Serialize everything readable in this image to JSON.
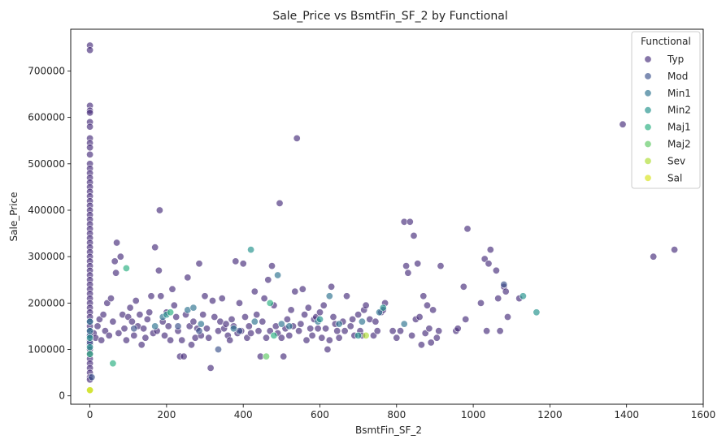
{
  "chart_data": {
    "type": "scatter",
    "title": "Sale_Price vs BsmtFin_SF_2 by Functional",
    "xlabel": "BsmtFin_SF_2",
    "ylabel": "Sale_Price",
    "xlim": [
      -50,
      1600
    ],
    "ylim": [
      -18000,
      790000
    ],
    "xticks": [
      0,
      200,
      400,
      600,
      800,
      1000,
      1200,
      1400,
      1600
    ],
    "yticks": [
      0,
      100000,
      200000,
      300000,
      400000,
      500000,
      600000,
      700000
    ],
    "grid": false,
    "legend": {
      "title": "Functional",
      "placement": "top-right"
    },
    "series": [
      {
        "name": "Typ",
        "color": "#472d7b",
        "points": [
          [
            0,
            755000
          ],
          [
            0,
            745000
          ],
          [
            0,
            625000
          ],
          [
            0,
            615000
          ],
          [
            0,
            610000
          ],
          [
            0,
            590000
          ],
          [
            0,
            580000
          ],
          [
            0,
            555000
          ],
          [
            0,
            545000
          ],
          [
            0,
            535000
          ],
          [
            0,
            520000
          ],
          [
            0,
            500000
          ],
          [
            0,
            490000
          ],
          [
            0,
            480000
          ],
          [
            0,
            470000
          ],
          [
            0,
            460000
          ],
          [
            0,
            450000
          ],
          [
            0,
            440000
          ],
          [
            0,
            430000
          ],
          [
            0,
            420000
          ],
          [
            0,
            410000
          ],
          [
            0,
            400000
          ],
          [
            0,
            390000
          ],
          [
            0,
            380000
          ],
          [
            0,
            370000
          ],
          [
            0,
            360000
          ],
          [
            0,
            350000
          ],
          [
            0,
            340000
          ],
          [
            0,
            330000
          ],
          [
            0,
            320000
          ],
          [
            0,
            310000
          ],
          [
            0,
            300000
          ],
          [
            0,
            290000
          ],
          [
            0,
            280000
          ],
          [
            0,
            270000
          ],
          [
            0,
            260000
          ],
          [
            0,
            250000
          ],
          [
            0,
            240000
          ],
          [
            0,
            230000
          ],
          [
            0,
            220000
          ],
          [
            0,
            210000
          ],
          [
            0,
            200000
          ],
          [
            0,
            190000
          ],
          [
            0,
            180000
          ],
          [
            0,
            170000
          ],
          [
            0,
            160000
          ],
          [
            0,
            150000
          ],
          [
            0,
            140000
          ],
          [
            0,
            130000
          ],
          [
            0,
            120000
          ],
          [
            0,
            110000
          ],
          [
            0,
            100000
          ],
          [
            0,
            90000
          ],
          [
            0,
            80000
          ],
          [
            0,
            70000
          ],
          [
            0,
            60000
          ],
          [
            0,
            50000
          ],
          [
            0,
            40000
          ],
          [
            0,
            35000
          ],
          [
            10,
            135000
          ],
          [
            15,
            125000
          ],
          [
            20,
            150000
          ],
          [
            25,
            165000
          ],
          [
            30,
            120000
          ],
          [
            35,
            175000
          ],
          [
            40,
            140000
          ],
          [
            45,
            200000
          ],
          [
            50,
            130000
          ],
          [
            55,
            210000
          ],
          [
            60,
            160000
          ],
          [
            65,
            290000
          ],
          [
            68,
            265000
          ],
          [
            70,
            330000
          ],
          [
            75,
            135000
          ],
          [
            80,
            300000
          ],
          [
            85,
            175000
          ],
          [
            90,
            145000
          ],
          [
            95,
            120000
          ],
          [
            100,
            170000
          ],
          [
            105,
            190000
          ],
          [
            110,
            160000
          ],
          [
            115,
            130000
          ],
          [
            120,
            205000
          ],
          [
            125,
            150000
          ],
          [
            130,
            175000
          ],
          [
            135,
            110000
          ],
          [
            140,
            145000
          ],
          [
            145,
            125000
          ],
          [
            150,
            165000
          ],
          [
            155,
            180000
          ],
          [
            160,
            215000
          ],
          [
            165,
            135000
          ],
          [
            170,
            320000
          ],
          [
            175,
            140000
          ],
          [
            180,
            270000
          ],
          [
            182,
            400000
          ],
          [
            185,
            215000
          ],
          [
            190,
            160000
          ],
          [
            195,
            130000
          ],
          [
            200,
            180000
          ],
          [
            205,
            150000
          ],
          [
            210,
            120000
          ],
          [
            215,
            230000
          ],
          [
            220,
            195000
          ],
          [
            225,
            170000
          ],
          [
            230,
            140000
          ],
          [
            235,
            85000
          ],
          [
            240,
            120000
          ],
          [
            245,
            85000
          ],
          [
            250,
            175000
          ],
          [
            255,
            255000
          ],
          [
            260,
            150000
          ],
          [
            265,
            110000
          ],
          [
            270,
            160000
          ],
          [
            275,
            125000
          ],
          [
            280,
            145000
          ],
          [
            285,
            285000
          ],
          [
            290,
            130000
          ],
          [
            295,
            175000
          ],
          [
            300,
            215000
          ],
          [
            305,
            145000
          ],
          [
            310,
            125000
          ],
          [
            315,
            60000
          ],
          [
            320,
            205000
          ],
          [
            325,
            170000
          ],
          [
            335,
            140000
          ],
          [
            340,
            160000
          ],
          [
            345,
            210000
          ],
          [
            350,
            145000
          ],
          [
            355,
            155000
          ],
          [
            360,
            130000
          ],
          [
            365,
            120000
          ],
          [
            370,
            165000
          ],
          [
            375,
            150000
          ],
          [
            380,
            290000
          ],
          [
            385,
            135000
          ],
          [
            390,
            200000
          ],
          [
            395,
            140000
          ],
          [
            400,
            285000
          ],
          [
            405,
            170000
          ],
          [
            410,
            125000
          ],
          [
            415,
            150000
          ],
          [
            420,
            135000
          ],
          [
            430,
            225000
          ],
          [
            435,
            175000
          ],
          [
            440,
            140000
          ],
          [
            445,
            85000
          ],
          [
            450,
            160000
          ],
          [
            455,
            210000
          ],
          [
            460,
            125000
          ],
          [
            465,
            250000
          ],
          [
            470,
            140000
          ],
          [
            475,
            280000
          ],
          [
            480,
            195000
          ],
          [
            485,
            150000
          ],
          [
            490,
            135000
          ],
          [
            495,
            415000
          ],
          [
            500,
            125000
          ],
          [
            505,
            85000
          ],
          [
            510,
            145000
          ],
          [
            515,
            165000
          ],
          [
            520,
            130000
          ],
          [
            525,
            185000
          ],
          [
            530,
            150000
          ],
          [
            535,
            225000
          ],
          [
            540,
            555000
          ],
          [
            545,
            140000
          ],
          [
            550,
            155000
          ],
          [
            555,
            230000
          ],
          [
            560,
            175000
          ],
          [
            565,
            120000
          ],
          [
            570,
            190000
          ],
          [
            575,
            145000
          ],
          [
            580,
            130000
          ],
          [
            585,
            165000
          ],
          [
            590,
            170000
          ],
          [
            595,
            145000
          ],
          [
            600,
            180000
          ],
          [
            605,
            125000
          ],
          [
            610,
            195000
          ],
          [
            615,
            145000
          ],
          [
            620,
            100000
          ],
          [
            625,
            120000
          ],
          [
            630,
            235000
          ],
          [
            635,
            170000
          ],
          [
            640,
            155000
          ],
          [
            645,
            140000
          ],
          [
            650,
            125000
          ],
          [
            660,
            160000
          ],
          [
            665,
            140000
          ],
          [
            670,
            215000
          ],
          [
            680,
            150000
          ],
          [
            685,
            165000
          ],
          [
            690,
            130000
          ],
          [
            700,
            175000
          ],
          [
            705,
            140000
          ],
          [
            710,
            130000
          ],
          [
            715,
            185000
          ],
          [
            720,
            195000
          ],
          [
            730,
            165000
          ],
          [
            740,
            130000
          ],
          [
            745,
            160000
          ],
          [
            750,
            140000
          ],
          [
            760,
            180000
          ],
          [
            765,
            185000
          ],
          [
            770,
            200000
          ],
          [
            790,
            140000
          ],
          [
            800,
            125000
          ],
          [
            810,
            140000
          ],
          [
            820,
            375000
          ],
          [
            825,
            280000
          ],
          [
            830,
            265000
          ],
          [
            835,
            375000
          ],
          [
            840,
            130000
          ],
          [
            845,
            345000
          ],
          [
            850,
            165000
          ],
          [
            855,
            285000
          ],
          [
            860,
            170000
          ],
          [
            865,
            110000
          ],
          [
            870,
            215000
          ],
          [
            875,
            135000
          ],
          [
            880,
            195000
          ],
          [
            885,
            145000
          ],
          [
            890,
            115000
          ],
          [
            895,
            185000
          ],
          [
            905,
            125000
          ],
          [
            910,
            140000
          ],
          [
            915,
            280000
          ],
          [
            955,
            140000
          ],
          [
            960,
            145000
          ],
          [
            975,
            235000
          ],
          [
            980,
            165000
          ],
          [
            985,
            360000
          ],
          [
            1020,
            200000
          ],
          [
            1030,
            295000
          ],
          [
            1035,
            140000
          ],
          [
            1040,
            285000
          ],
          [
            1045,
            315000
          ],
          [
            1060,
            270000
          ],
          [
            1065,
            210000
          ],
          [
            1070,
            140000
          ],
          [
            1080,
            235000
          ],
          [
            1085,
            225000
          ],
          [
            1090,
            170000
          ],
          [
            1120,
            210000
          ],
          [
            1390,
            585000
          ],
          [
            1470,
            300000
          ],
          [
            1525,
            315000
          ]
        ]
      },
      {
        "name": "Mod",
        "color": "#3b528b",
        "points": [
          [
            0,
            130000
          ],
          [
            0,
            115000
          ],
          [
            5,
            40000
          ],
          [
            115,
            145000
          ],
          [
            230,
            150000
          ],
          [
            285,
            140000
          ],
          [
            335,
            100000
          ],
          [
            390,
            140000
          ],
          [
            1080,
            240000
          ]
        ]
      },
      {
        "name": "Min1",
        "color": "#2c728e",
        "points": [
          [
            0,
            140000
          ],
          [
            0,
            160000
          ],
          [
            170,
            150000
          ],
          [
            190,
            170000
          ],
          [
            255,
            185000
          ],
          [
            270,
            190000
          ],
          [
            290,
            155000
          ],
          [
            375,
            145000
          ],
          [
            430,
            160000
          ],
          [
            490,
            260000
          ],
          [
            500,
            155000
          ],
          [
            520,
            150000
          ],
          [
            595,
            160000
          ],
          [
            625,
            215000
          ],
          [
            650,
            155000
          ],
          [
            710,
            160000
          ],
          [
            755,
            180000
          ],
          [
            820,
            155000
          ]
        ]
      },
      {
        "name": "Min2",
        "color": "#21918c",
        "points": [
          [
            0,
            125000
          ],
          [
            0,
            105000
          ],
          [
            200,
            175000
          ],
          [
            420,
            315000
          ],
          [
            600,
            165000
          ],
          [
            700,
            130000
          ],
          [
            765,
            190000
          ],
          [
            1130,
            215000
          ],
          [
            1165,
            180000
          ]
        ]
      },
      {
        "name": "Maj1",
        "color": "#28ae80",
        "points": [
          [
            0,
            90000
          ],
          [
            60,
            70000
          ],
          [
            95,
            275000
          ],
          [
            210,
            180000
          ],
          [
            470,
            200000
          ],
          [
            480,
            130000
          ]
        ]
      },
      {
        "name": "Maj2",
        "color": "#5ec962",
        "points": [
          [
            460,
            85000
          ]
        ]
      },
      {
        "name": "Sev",
        "color": "#addc30",
        "points": [
          [
            0,
            13000
          ],
          [
            720,
            130000
          ]
        ]
      },
      {
        "name": "Sal",
        "color": "#d8e219",
        "points": [
          [
            0,
            12000
          ]
        ]
      }
    ]
  }
}
